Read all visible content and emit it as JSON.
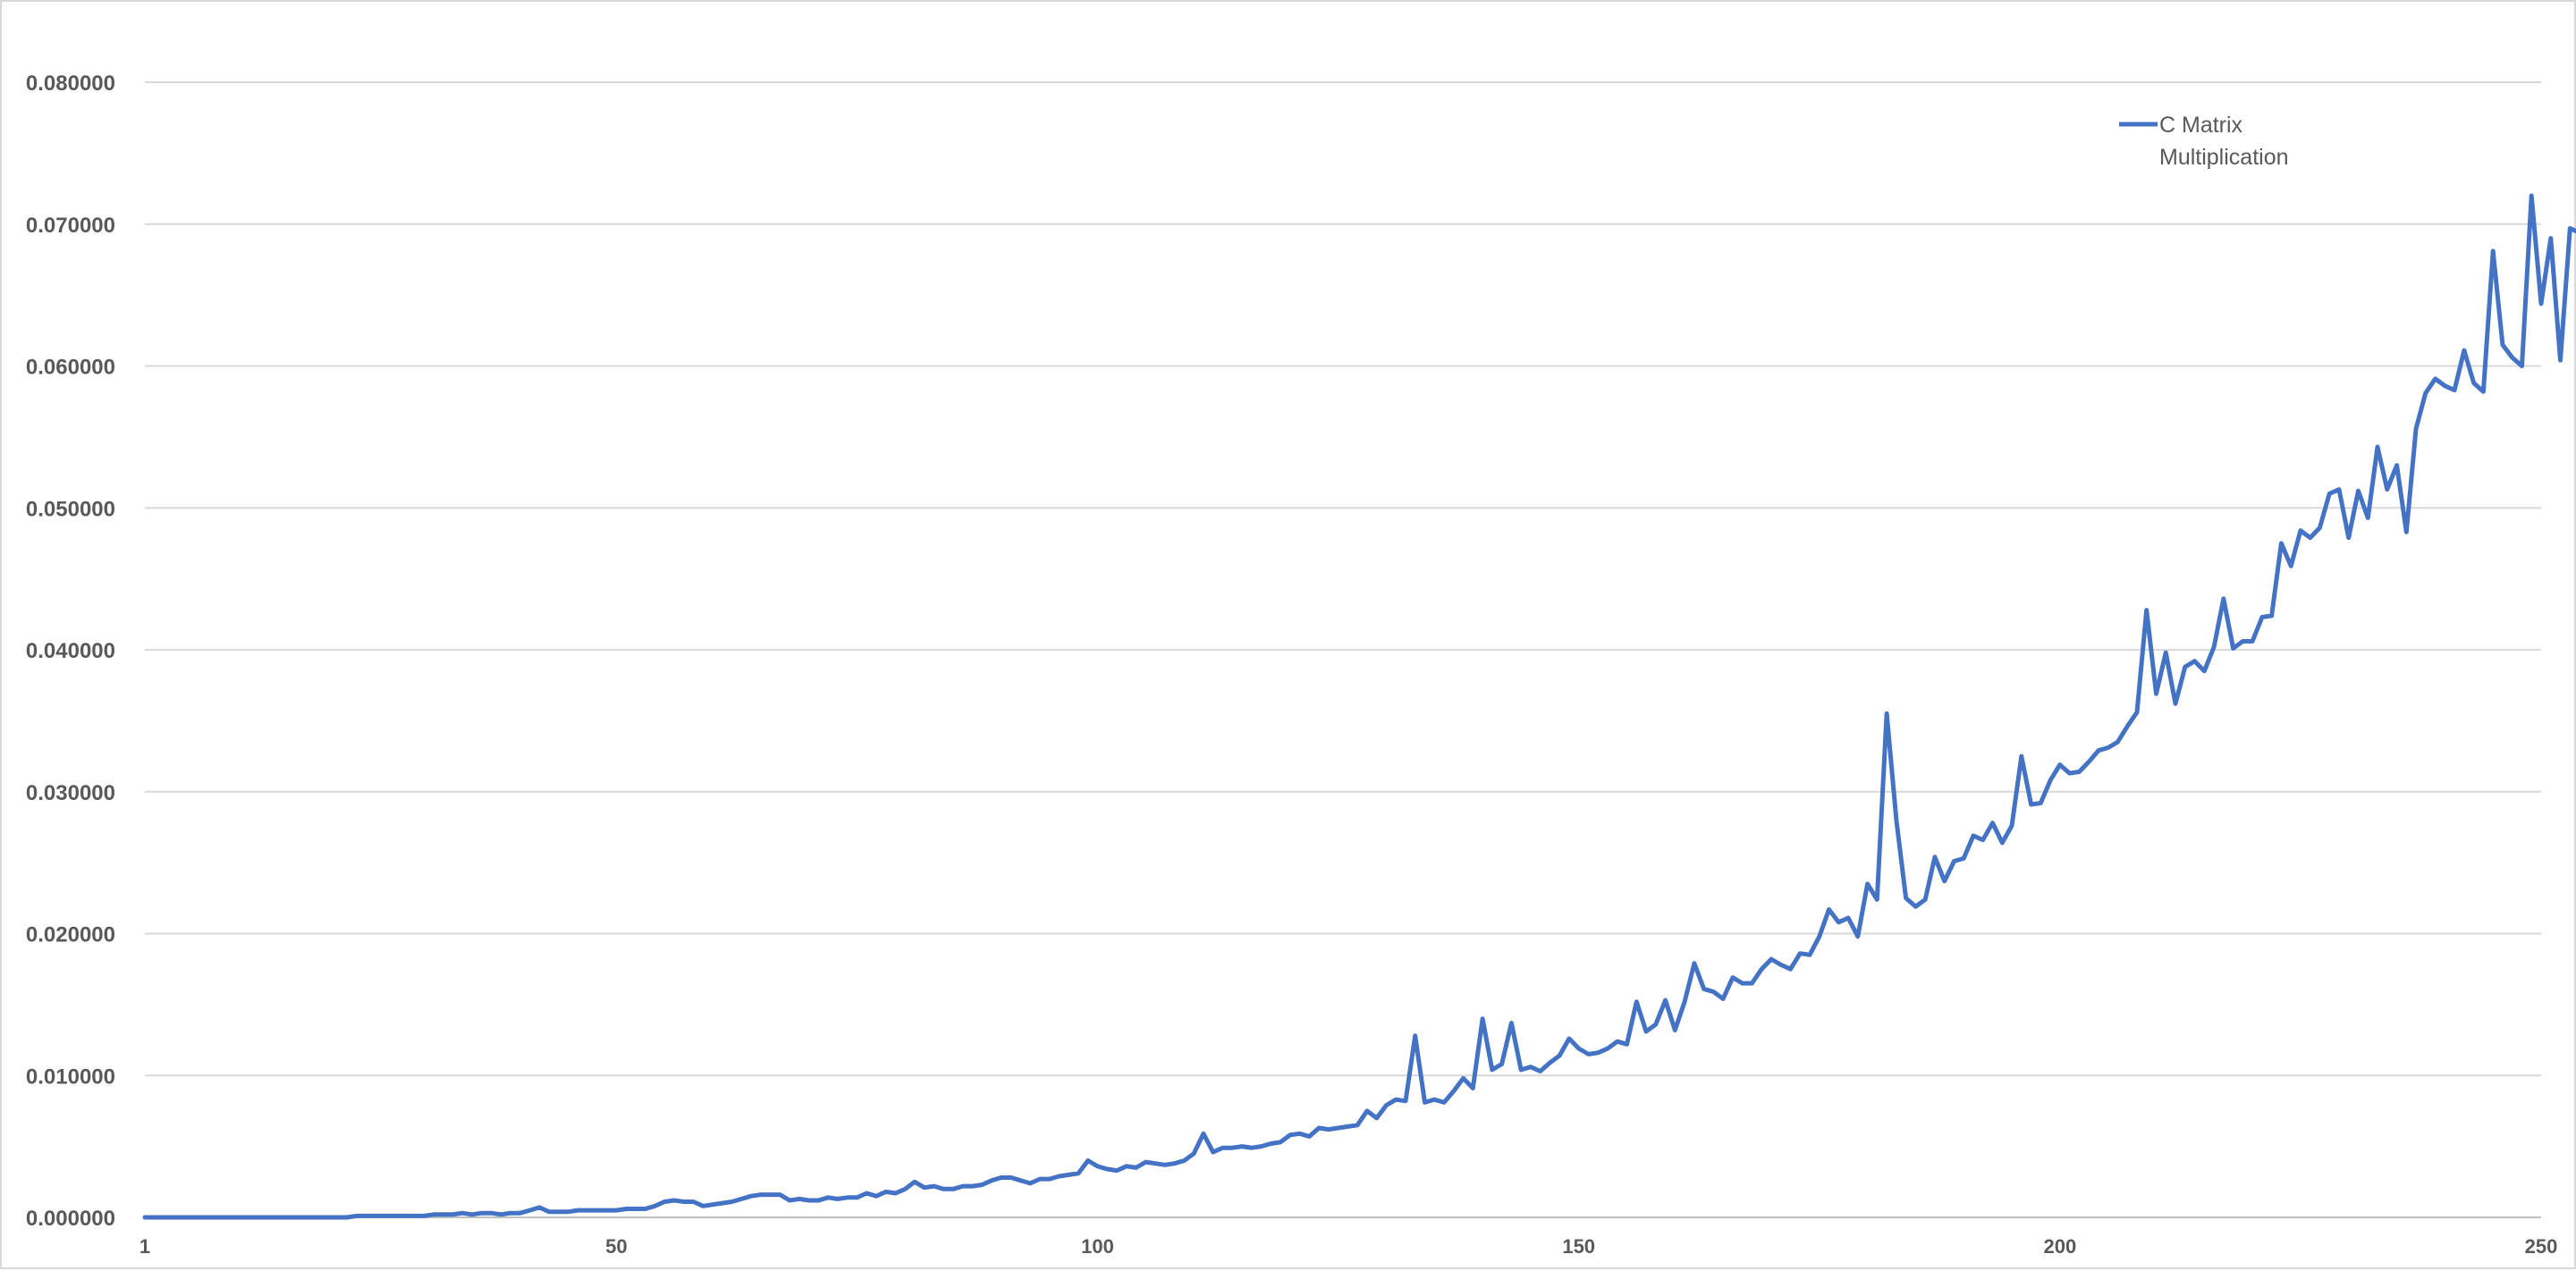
{
  "chart_data": {
    "type": "line",
    "title": "",
    "xlabel": "",
    "ylabel": "",
    "xlim": [
      1,
      250
    ],
    "ylim": [
      0,
      0.08
    ],
    "y_tick_labels": [
      "0.000000",
      "0.010000",
      "0.020000",
      "0.030000",
      "0.040000",
      "0.050000",
      "0.060000",
      "0.070000",
      "0.080000"
    ],
    "x_tick_values": [
      1,
      50,
      100,
      150,
      200,
      250
    ],
    "x_tick_labels": [
      "1",
      "50",
      "100",
      "150",
      "200",
      "250"
    ],
    "grid": "horizontal",
    "legend_position": "top-right",
    "colors": {
      "series": "#4472c4",
      "grid": "#d9d9d9",
      "axis": "#bfbfbf",
      "text": "#595959"
    },
    "series": [
      {
        "name_lines": [
          "C Matrix",
          "Multiplication"
        ],
        "x_start": 1,
        "values": [
          0,
          0,
          0,
          0,
          0,
          0,
          0,
          0,
          0,
          0,
          0,
          0,
          0,
          0,
          0,
          0,
          0,
          0,
          0,
          0,
          0,
          0,
          0.0001,
          0.0001,
          0.0001,
          0.0001,
          0.0001,
          0.0001,
          0.0001,
          0.0001,
          0.0002,
          0.0002,
          0.0002,
          0.0003,
          0.0002,
          0.0003,
          0.0003,
          0.0002,
          0.0003,
          0.0003,
          0.0005,
          0.0007,
          0.0004,
          0.0004,
          0.0004,
          0.0005,
          0.0005,
          0.0005,
          0.0005,
          0.0005,
          0.0006,
          0.0006,
          0.0006,
          0.0008,
          0.0011,
          0.0012,
          0.0011,
          0.0011,
          0.0008,
          0.0009,
          0.001,
          0.0011,
          0.0013,
          0.0015,
          0.0016,
          0.0016,
          0.0016,
          0.0012,
          0.0013,
          0.0012,
          0.0012,
          0.0014,
          0.0013,
          0.0014,
          0.0014,
          0.0017,
          0.0015,
          0.0018,
          0.0017,
          0.002,
          0.0025,
          0.0021,
          0.0022,
          0.002,
          0.002,
          0.0022,
          0.0022,
          0.0023,
          0.0026,
          0.0028,
          0.0028,
          0.0026,
          0.0024,
          0.0027,
          0.0027,
          0.0029,
          0.003,
          0.0031,
          0.004,
          0.0036,
          0.0034,
          0.0033,
          0.0036,
          0.0035,
          0.0039,
          0.0038,
          0.0037,
          0.0038,
          0.004,
          0.0045,
          0.0059,
          0.0046,
          0.0049,
          0.0049,
          0.005,
          0.0049,
          0.005,
          0.0052,
          0.0053,
          0.0058,
          0.0059,
          0.0057,
          0.0063,
          0.0062,
          0.0063,
          0.0064,
          0.0065,
          0.0075,
          0.007,
          0.0079,
          0.0083,
          0.0082,
          0.0128,
          0.0081,
          0.0083,
          0.0081,
          0.0089,
          0.0098,
          0.0091,
          0.014,
          0.0104,
          0.0108,
          0.0137,
          0.0104,
          0.0106,
          0.0103,
          0.0109,
          0.0114,
          0.0126,
          0.0119,
          0.0115,
          0.0116,
          0.0119,
          0.0124,
          0.0122,
          0.0152,
          0.0131,
          0.0136,
          0.0153,
          0.0132,
          0.0152,
          0.0179,
          0.0161,
          0.0159,
          0.0154,
          0.0169,
          0.0165,
          0.0165,
          0.0175,
          0.0182,
          0.0178,
          0.0175,
          0.0186,
          0.0185,
          0.0198,
          0.0217,
          0.0208,
          0.0211,
          0.0198,
          0.0235,
          0.0224,
          0.0355,
          0.028,
          0.0225,
          0.0219,
          0.0224,
          0.0254,
          0.0237,
          0.0251,
          0.0253,
          0.0269,
          0.0266,
          0.0278,
          0.0264,
          0.0276,
          0.0325,
          0.0291,
          0.0292,
          0.0308,
          0.0319,
          0.0313,
          0.0314,
          0.0321,
          0.0329,
          0.0331,
          0.0335,
          0.0346,
          0.0356,
          0.0428,
          0.0369,
          0.0398,
          0.0362,
          0.0388,
          0.0392,
          0.0385,
          0.0402,
          0.0436,
          0.0401,
          0.0406,
          0.0406,
          0.0423,
          0.0424,
          0.0475,
          0.0459,
          0.0484,
          0.0479,
          0.0486,
          0.051,
          0.0513,
          0.0479,
          0.0512,
          0.0493,
          0.0543,
          0.0513,
          0.053,
          0.0483,
          0.0556,
          0.0581,
          0.0591,
          0.0586,
          0.0583,
          0.0611,
          0.0588,
          0.0582,
          0.0681,
          0.0615,
          0.0606,
          0.06,
          0.072,
          0.0644,
          0.069,
          0.0604,
          0.0697,
          0.0694
        ]
      }
    ]
  }
}
